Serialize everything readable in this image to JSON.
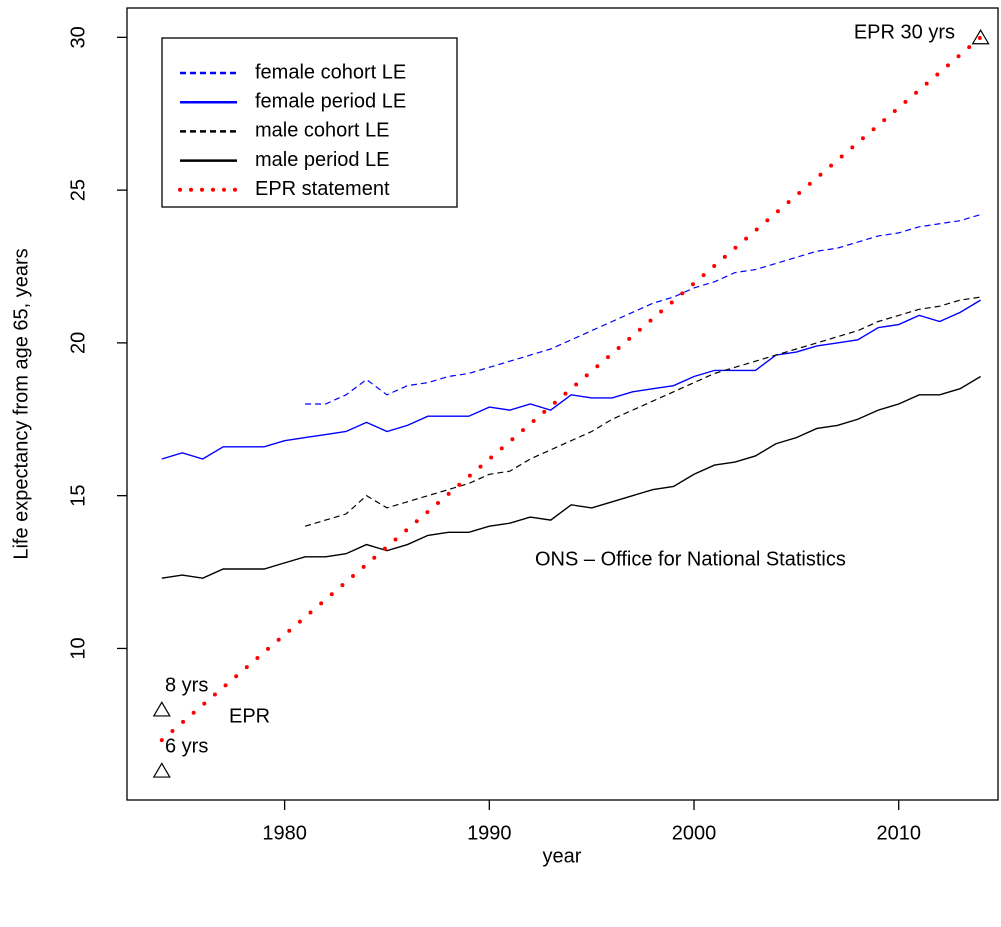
{
  "chart_data": {
    "type": "line",
    "x_label": "year",
    "y_label": "Life expectancy from age 65, years",
    "xlim": [
      1972.3,
      2014.85
    ],
    "ylim": [
      5.04,
      30.96
    ],
    "xticks": [
      1980,
      1990,
      2000,
      2010
    ],
    "yticks": [
      10,
      15,
      20,
      25,
      30
    ],
    "legend": "top-left",
    "series": [
      {
        "name": "female cohort LE",
        "color": "#0000ff",
        "style": "dashed",
        "x": [
          1981,
          1982,
          1983,
          1984,
          1985,
          1986,
          1987,
          1988,
          1989,
          1990,
          1991,
          1992,
          1993,
          1994,
          1995,
          1996,
          1997,
          1998,
          1999,
          2000,
          2001,
          2002,
          2003,
          2004,
          2005,
          2006,
          2007,
          2008,
          2009,
          2010,
          2011,
          2012,
          2013,
          2014
        ],
        "values": [
          18.0,
          18.0,
          18.3,
          18.8,
          18.3,
          18.6,
          18.7,
          18.9,
          19.0,
          19.2,
          19.4,
          19.6,
          19.8,
          20.1,
          20.4,
          20.7,
          21.0,
          21.3,
          21.5,
          21.8,
          22.0,
          22.3,
          22.4,
          22.6,
          22.8,
          23.0,
          23.1,
          23.3,
          23.5,
          23.6,
          23.8,
          23.9,
          24.0,
          24.2
        ]
      },
      {
        "name": "female period LE",
        "color": "#0000ff",
        "style": "solid",
        "x": [
          1974,
          1975,
          1976,
          1977,
          1978,
          1979,
          1980,
          1981,
          1982,
          1983,
          1984,
          1985,
          1986,
          1987,
          1988,
          1989,
          1990,
          1991,
          1992,
          1993,
          1994,
          1995,
          1996,
          1997,
          1998,
          1999,
          2000,
          2001,
          2002,
          2003,
          2004,
          2005,
          2006,
          2007,
          2008,
          2009,
          2010,
          2011,
          2012,
          2013,
          2014
        ],
        "values": [
          16.2,
          16.4,
          16.2,
          16.6,
          16.6,
          16.6,
          16.8,
          16.9,
          17.0,
          17.1,
          17.4,
          17.1,
          17.3,
          17.6,
          17.6,
          17.6,
          17.9,
          17.8,
          18.0,
          17.8,
          18.3,
          18.2,
          18.2,
          18.4,
          18.5,
          18.6,
          18.9,
          19.1,
          19.1,
          19.1,
          19.6,
          19.7,
          19.9,
          20.0,
          20.1,
          20.5,
          20.6,
          20.9,
          20.7,
          21.0,
          21.4
        ]
      },
      {
        "name": "male cohort LE",
        "color": "#000000",
        "style": "dashed",
        "x": [
          1981,
          1982,
          1983,
          1984,
          1985,
          1986,
          1987,
          1988,
          1989,
          1990,
          1991,
          1992,
          1993,
          1994,
          1995,
          1996,
          1997,
          1998,
          1999,
          2000,
          2001,
          2002,
          2003,
          2004,
          2005,
          2006,
          2007,
          2008,
          2009,
          2010,
          2011,
          2012,
          2013,
          2014
        ],
        "values": [
          14.0,
          14.2,
          14.4,
          15.0,
          14.6,
          14.8,
          15.0,
          15.2,
          15.4,
          15.7,
          15.8,
          16.2,
          16.5,
          16.8,
          17.1,
          17.5,
          17.8,
          18.1,
          18.4,
          18.7,
          19.0,
          19.2,
          19.4,
          19.6,
          19.8,
          20.0,
          20.2,
          20.4,
          20.7,
          20.9,
          21.1,
          21.2,
          21.4,
          21.5
        ]
      },
      {
        "name": "male period LE",
        "color": "#000000",
        "style": "solid",
        "x": [
          1974,
          1975,
          1976,
          1977,
          1978,
          1979,
          1980,
          1981,
          1982,
          1983,
          1984,
          1985,
          1986,
          1987,
          1988,
          1989,
          1990,
          1991,
          1992,
          1993,
          1994,
          1995,
          1996,
          1997,
          1998,
          1999,
          2000,
          2001,
          2002,
          2003,
          2004,
          2005,
          2006,
          2007,
          2008,
          2009,
          2010,
          2011,
          2012,
          2013,
          2014
        ],
        "values": [
          12.3,
          12.4,
          12.3,
          12.6,
          12.6,
          12.6,
          12.8,
          13.0,
          13.0,
          13.1,
          13.4,
          13.2,
          13.4,
          13.7,
          13.8,
          13.8,
          14.0,
          14.1,
          14.3,
          14.2,
          14.7,
          14.6,
          14.8,
          15.0,
          15.2,
          15.3,
          15.7,
          16.0,
          16.1,
          16.3,
          16.7,
          16.9,
          17.2,
          17.3,
          17.5,
          17.8,
          18.0,
          18.3,
          18.3,
          18.5,
          18.9
        ]
      },
      {
        "name": "EPR statement",
        "color": "#ff0000",
        "style": "dotted",
        "x": [
          1974,
          2014
        ],
        "values": [
          7,
          30
        ]
      }
    ],
    "points": {
      "x": [
        1974,
        1974,
        2014
      ],
      "y": [
        8,
        6,
        30
      ]
    },
    "annotations": [
      "8 yrs",
      "6 yrs",
      "EPR",
      "EPR 30 yrs",
      "ONS – Office for National Statistics"
    ]
  }
}
